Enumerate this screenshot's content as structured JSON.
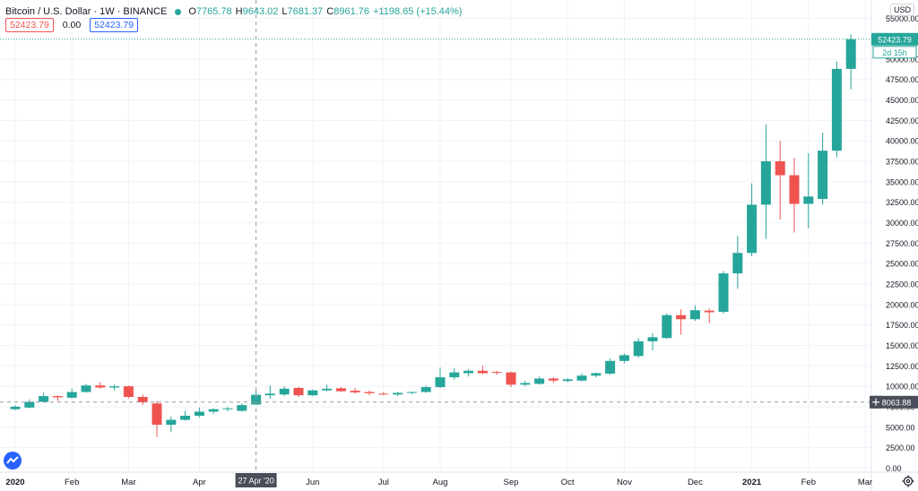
{
  "legend": {
    "title": "Bitcoin / U.S. Dollar · 1W · BINANCE",
    "ohlc": [
      {
        "key": "O",
        "value": "7765.78"
      },
      {
        "key": "H",
        "value": "9643.02"
      },
      {
        "key": "L",
        "value": "7681.37"
      },
      {
        "key": "C",
        "value": "8961.76"
      },
      {
        "key": "",
        "value": "+1198.65 (+15.44%)"
      }
    ],
    "row2": [
      "52423.79",
      "0.00",
      "52423.79"
    ]
  },
  "currency": "USD",
  "price_label": {
    "value": "52423.79",
    "countdown": "2d 15h"
  },
  "crosshair": {
    "date_label": "27 Apr '20",
    "price_label": "8063.88",
    "price": 8063.88
  },
  "colors": {
    "up": "#26a69a",
    "down": "#ef5350",
    "grid": "#f0f3fa",
    "crosshair": "#9598a1",
    "axis_text": "#131722"
  },
  "icons": {
    "logo": "tradingview-logo-icon",
    "settings": "gear-icon",
    "crosshair_add": "plus-icon"
  },
  "chart_data": {
    "type": "candlestick",
    "y_axis": {
      "ylim": [
        -500,
        57000
      ],
      "ticks": [
        0,
        2500,
        5000,
        7500,
        10000,
        12500,
        15000,
        17500,
        20000,
        22500,
        25000,
        27500,
        30000,
        32500,
        35000,
        37500,
        40000,
        42500,
        45000,
        47500,
        50000,
        55000
      ],
      "tick_labels": [
        "0.00",
        "2500.00",
        "5000.00",
        "7500.00",
        "10000.00",
        "12500.00",
        "15000.00",
        "17500.00",
        "20000.00",
        "22500.00",
        "25000.00",
        "27500.00",
        "30000.00",
        "32500.00",
        "35000.00",
        "37500.00",
        "40000.00",
        "42500.00",
        "45000.00",
        "47500.00",
        "50000.00",
        "55000.00"
      ],
      "position": "right"
    },
    "x_axis": {
      "labels": [
        {
          "text": "2020",
          "week": 0,
          "bold": true
        },
        {
          "text": "Feb",
          "week": 4
        },
        {
          "text": "Mar",
          "week": 8
        },
        {
          "text": "Apr",
          "week": 13
        },
        {
          "text": "Jun",
          "week": 21
        },
        {
          "text": "Jul",
          "week": 26
        },
        {
          "text": "Aug",
          "week": 30
        },
        {
          "text": "Sep",
          "week": 35
        },
        {
          "text": "Oct",
          "week": 39
        },
        {
          "text": "Nov",
          "week": 43
        },
        {
          "text": "Dec",
          "week": 48
        },
        {
          "text": "2021",
          "week": 52,
          "bold": true
        },
        {
          "text": "Feb",
          "week": 56
        },
        {
          "text": "Mar",
          "week": 60
        }
      ]
    },
    "grid": true,
    "candles": [
      {
        "o": 7200,
        "h": 7700,
        "l": 7100,
        "c": 7500
      },
      {
        "o": 7400,
        "h": 8400,
        "l": 7300,
        "c": 8100
      },
      {
        "o": 8100,
        "h": 9200,
        "l": 8000,
        "c": 8800
      },
      {
        "o": 8800,
        "h": 8900,
        "l": 8200,
        "c": 8650
      },
      {
        "o": 8600,
        "h": 9700,
        "l": 8500,
        "c": 9300
      },
      {
        "o": 9300,
        "h": 10300,
        "l": 9200,
        "c": 10100
      },
      {
        "o": 10100,
        "h": 10500,
        "l": 9700,
        "c": 9850
      },
      {
        "o": 9850,
        "h": 10200,
        "l": 9500,
        "c": 10000
      },
      {
        "o": 10000,
        "h": 10100,
        "l": 8500,
        "c": 8700
      },
      {
        "o": 8700,
        "h": 9000,
        "l": 7700,
        "c": 8050
      },
      {
        "o": 7900,
        "h": 8200,
        "l": 3800,
        "c": 5300
      },
      {
        "o": 5300,
        "h": 6300,
        "l": 4400,
        "c": 5900
      },
      {
        "o": 5900,
        "h": 7000,
        "l": 5800,
        "c": 6400
      },
      {
        "o": 6400,
        "h": 7400,
        "l": 6200,
        "c": 6900
      },
      {
        "o": 6900,
        "h": 7300,
        "l": 6600,
        "c": 7200
      },
      {
        "o": 7200,
        "h": 7500,
        "l": 6900,
        "c": 7300
      },
      {
        "o": 7000,
        "h": 7900,
        "l": 6900,
        "c": 7700
      },
      {
        "o": 7765.78,
        "h": 9643.02,
        "l": 7681.37,
        "c": 8961.76
      },
      {
        "o": 8900,
        "h": 10100,
        "l": 8500,
        "c": 9100
      },
      {
        "o": 9000,
        "h": 10000,
        "l": 8800,
        "c": 9700
      },
      {
        "o": 9800,
        "h": 9900,
        "l": 8700,
        "c": 8900
      },
      {
        "o": 8900,
        "h": 9600,
        "l": 8800,
        "c": 9500
      },
      {
        "o": 9500,
        "h": 10200,
        "l": 9400,
        "c": 9700
      },
      {
        "o": 9750,
        "h": 9900,
        "l": 9300,
        "c": 9400
      },
      {
        "o": 9450,
        "h": 9800,
        "l": 9100,
        "c": 9250
      },
      {
        "o": 9300,
        "h": 9500,
        "l": 8900,
        "c": 9150
      },
      {
        "o": 9100,
        "h": 9300,
        "l": 8900,
        "c": 9050
      },
      {
        "o": 9000,
        "h": 9300,
        "l": 8800,
        "c": 9200
      },
      {
        "o": 9200,
        "h": 9350,
        "l": 9000,
        "c": 9300
      },
      {
        "o": 9300,
        "h": 10100,
        "l": 9200,
        "c": 9900
      },
      {
        "o": 9900,
        "h": 12300,
        "l": 9800,
        "c": 11100
      },
      {
        "o": 11100,
        "h": 12200,
        "l": 10800,
        "c": 11700
      },
      {
        "o": 11600,
        "h": 12100,
        "l": 11200,
        "c": 11900
      },
      {
        "o": 11900,
        "h": 12500,
        "l": 11500,
        "c": 11600
      },
      {
        "o": 11750,
        "h": 11900,
        "l": 11400,
        "c": 11650
      },
      {
        "o": 11700,
        "h": 11800,
        "l": 9900,
        "c": 10200
      },
      {
        "o": 10200,
        "h": 10650,
        "l": 10000,
        "c": 10400
      },
      {
        "o": 10300,
        "h": 11200,
        "l": 10200,
        "c": 10950
      },
      {
        "o": 10950,
        "h": 11100,
        "l": 10400,
        "c": 10700
      },
      {
        "o": 10650,
        "h": 11000,
        "l": 10500,
        "c": 10850
      },
      {
        "o": 10700,
        "h": 11600,
        "l": 10600,
        "c": 11300
      },
      {
        "o": 11300,
        "h": 11700,
        "l": 11100,
        "c": 11600
      },
      {
        "o": 11550,
        "h": 13400,
        "l": 11400,
        "c": 13100
      },
      {
        "o": 13100,
        "h": 14000,
        "l": 12800,
        "c": 13800
      },
      {
        "o": 13700,
        "h": 15900,
        "l": 13500,
        "c": 15500
      },
      {
        "o": 15500,
        "h": 16500,
        "l": 14400,
        "c": 16000
      },
      {
        "o": 15900,
        "h": 18900,
        "l": 15800,
        "c": 18700
      },
      {
        "o": 18700,
        "h": 19400,
        "l": 16300,
        "c": 18200
      },
      {
        "o": 18200,
        "h": 19900,
        "l": 18000,
        "c": 19300
      },
      {
        "o": 19250,
        "h": 19500,
        "l": 17700,
        "c": 19050
      },
      {
        "o": 19100,
        "h": 24100,
        "l": 18900,
        "c": 23800
      },
      {
        "o": 23800,
        "h": 28400,
        "l": 21900,
        "c": 26300
      },
      {
        "o": 26300,
        "h": 34800,
        "l": 25900,
        "c": 32200
      },
      {
        "o": 32200,
        "h": 42000,
        "l": 28000,
        "c": 37500
      },
      {
        "o": 37500,
        "h": 40000,
        "l": 30400,
        "c": 35800
      },
      {
        "o": 35800,
        "h": 37900,
        "l": 28800,
        "c": 32300
      },
      {
        "o": 32300,
        "h": 38500,
        "l": 29300,
        "c": 33200
      },
      {
        "o": 32900,
        "h": 41000,
        "l": 32200,
        "c": 38800
      },
      {
        "o": 38800,
        "h": 49700,
        "l": 38000,
        "c": 48800
      },
      {
        "o": 48800,
        "h": 53000,
        "l": 46300,
        "c": 52423.79
      }
    ]
  }
}
